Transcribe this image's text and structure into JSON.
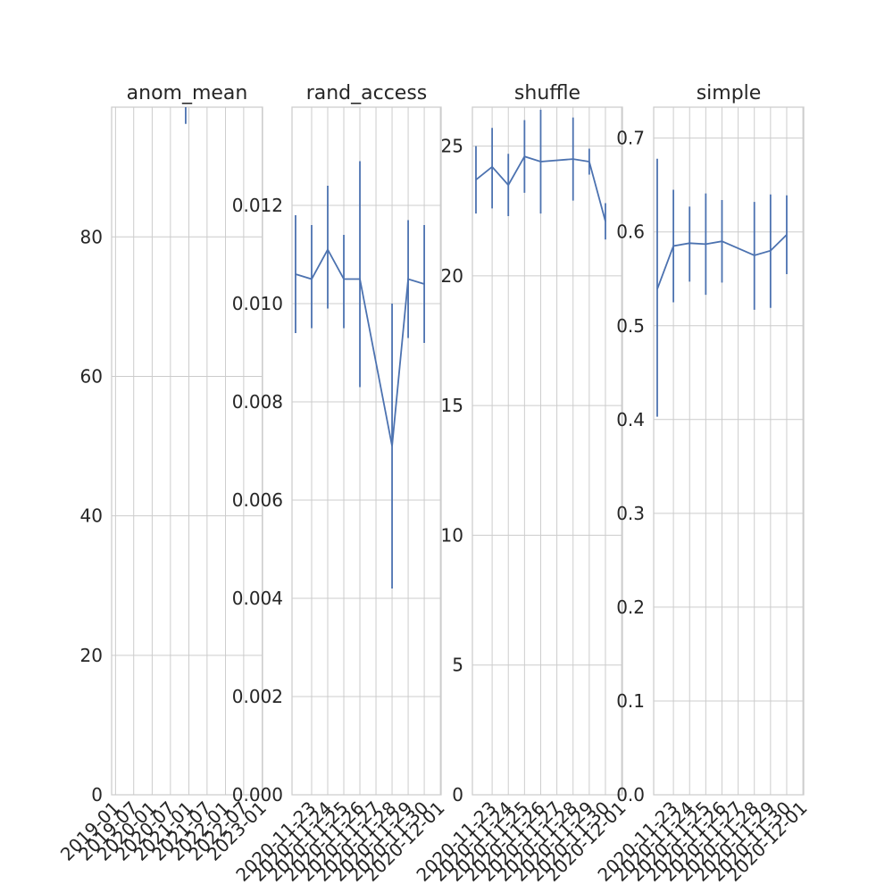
{
  "chart_data": [
    {
      "type": "line",
      "title": "anom_mean",
      "ylim": [
        0,
        98.6
      ],
      "yticks": [
        0,
        20,
        40,
        60,
        80
      ],
      "x_domain": [
        "2018-11-23",
        "2023-01-05"
      ],
      "x_ticks": [
        "2019-01",
        "2019-07",
        "2020-01",
        "2020-07",
        "2021-01",
        "2021-07",
        "2022-01",
        "2022-07",
        "2023-01"
      ],
      "x_tick_dates": [
        "2019-01-01",
        "2019-07-01",
        "2020-01-01",
        "2020-07-01",
        "2021-01-01",
        "2021-07-01",
        "2022-01-01",
        "2022-07-01",
        "2023-01-01"
      ],
      "grid": true,
      "series": [
        {
          "x": [
            "2020-11-30"
          ],
          "y": [
            98.6
          ],
          "err_low": [
            96.2
          ],
          "err_high": [
            101
          ]
        }
      ],
      "color": "#4c72b0"
    },
    {
      "type": "line",
      "title": "rand_access",
      "ylim": [
        0,
        0.014
      ],
      "yticks": [
        "0.000",
        "0.002",
        "0.004",
        "0.006",
        "0.008",
        "0.010",
        "0.012"
      ],
      "x_ticks": [
        "2020-11-23",
        "2020-11-24",
        "2020-11-25",
        "2020-11-26",
        "2020-11-27",
        "2020-11-28",
        "2020-11-29",
        "2020-11-30",
        "2020-12-01"
      ],
      "grid": true,
      "series": [
        {
          "x": [
            "2020-11-22",
            "2020-11-23",
            "2020-11-24",
            "2020-11-25",
            "2020-11-26",
            "2020-11-28",
            "2020-11-29",
            "2020-11-30"
          ],
          "y": [
            0.0106,
            0.0105,
            0.0111,
            0.0105,
            0.0105,
            0.0071,
            0.0105,
            0.0104
          ],
          "err_low": [
            0.0094,
            0.0095,
            0.0099,
            0.0095,
            0.0083,
            0.0042,
            0.0093,
            0.0092
          ],
          "err_high": [
            0.0118,
            0.0116,
            0.0124,
            0.0114,
            0.0129,
            0.01,
            0.0117,
            0.0116
          ]
        }
      ],
      "color": "#4c72b0"
    },
    {
      "type": "line",
      "title": "shuffle",
      "ylim": [
        0,
        26.5
      ],
      "yticks": [
        0,
        5,
        10,
        15,
        20,
        25
      ],
      "x_ticks": [
        "2020-11-23",
        "2020-11-24",
        "2020-11-25",
        "2020-11-26",
        "2020-11-27",
        "2020-11-28",
        "2020-11-29",
        "2020-11-30",
        "2020-12-01"
      ],
      "grid": true,
      "series": [
        {
          "x": [
            "2020-11-22",
            "2020-11-23",
            "2020-11-24",
            "2020-11-25",
            "2020-11-26",
            "2020-11-28",
            "2020-11-29",
            "2020-11-30"
          ],
          "y": [
            23.7,
            24.2,
            23.5,
            24.6,
            24.4,
            24.5,
            24.4,
            22.1
          ],
          "err_low": [
            22.4,
            22.6,
            22.3,
            23.2,
            22.4,
            22.9,
            23.9,
            21.4
          ],
          "err_high": [
            25.0,
            25.7,
            24.7,
            26.0,
            26.4,
            26.1,
            24.9,
            22.8
          ]
        }
      ],
      "color": "#4c72b0"
    },
    {
      "type": "line",
      "title": "simple",
      "ylim": [
        0,
        0.733
      ],
      "yticks": [
        "0.0",
        "0.1",
        "0.2",
        "0.3",
        "0.4",
        "0.5",
        "0.6",
        "0.7"
      ],
      "x_ticks": [
        "2020-11-23",
        "2020-11-24",
        "2020-11-25",
        "2020-11-26",
        "2020-11-27",
        "2020-11-28",
        "2020-11-29",
        "2020-11-30",
        "2020-12-01"
      ],
      "grid": true,
      "series": [
        {
          "x": [
            "2020-11-22",
            "2020-11-23",
            "2020-11-24",
            "2020-11-25",
            "2020-11-26",
            "2020-11-28",
            "2020-11-29",
            "2020-11-30"
          ],
          "y": [
            0.539,
            0.585,
            0.588,
            0.587,
            0.59,
            0.575,
            0.58,
            0.597
          ],
          "err_low": [
            0.403,
            0.525,
            0.547,
            0.533,
            0.546,
            0.517,
            0.519,
            0.555
          ],
          "err_high": [
            0.678,
            0.645,
            0.627,
            0.641,
            0.634,
            0.632,
            0.64,
            0.639
          ]
        }
      ],
      "color": "#4c72b0"
    }
  ]
}
